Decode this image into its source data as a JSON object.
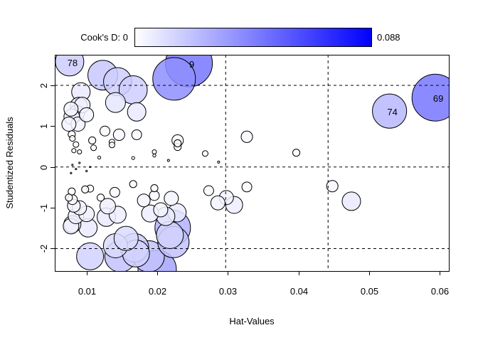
{
  "chart_data": {
    "type": "scatter",
    "subtype": "bubble",
    "xlabel": "Hat-Values",
    "ylabel": "Studentized Residuals",
    "xlim": [
      0.0055,
      0.0613
    ],
    "ylim": [
      -2.55,
      2.75
    ],
    "x_ticks": [
      "0.01",
      "0.02",
      "0.03",
      "0.04",
      "0.05",
      "0.06"
    ],
    "x_tick_values": [
      0.01,
      0.02,
      0.03,
      0.04,
      0.05,
      0.06
    ],
    "y_ticks": [
      "-2",
      "-1",
      "0",
      "1",
      "2"
    ],
    "y_tick_values": [
      -2,
      -1,
      0,
      1,
      2
    ],
    "reference_lines": {
      "vertical": [
        0.0297,
        0.0442
      ],
      "horizontal": [
        -2,
        0,
        2
      ],
      "style": "dashed"
    },
    "color_scale": {
      "label": "Cook's D: 0",
      "min": 0,
      "max": 0.088,
      "max_label": "0.088",
      "low_color": "#ffffff",
      "high_color": "#0000ff"
    },
    "grid": false,
    "points_fields": [
      "hat",
      "rstudent",
      "cooksd",
      "label"
    ],
    "points": [
      [
        0.0076,
        2.58,
        0.0173,
        "78"
      ],
      [
        0.0245,
        2.54,
        0.047,
        "9"
      ],
      [
        0.0594,
        1.7,
        0.047,
        "69"
      ],
      [
        0.0529,
        1.37,
        0.025,
        "74"
      ],
      [
        0.0224,
        2.16,
        0.039,
        ""
      ],
      [
        0.0123,
        2.25,
        0.019,
        ""
      ],
      [
        0.0144,
        2.09,
        0.017,
        ""
      ],
      [
        0.0166,
        1.89,
        0.017,
        ""
      ],
      [
        0.0141,
        1.58,
        0.0085,
        ""
      ],
      [
        0.0171,
        1.35,
        0.0073,
        ""
      ],
      [
        0.0092,
        1.84,
        0.0073,
        ""
      ],
      [
        0.0089,
        1.5,
        0.0062,
        ""
      ],
      [
        0.0086,
        1.32,
        0.0052,
        ""
      ],
      [
        0.0079,
        1.23,
        0.0052,
        ""
      ],
      [
        0.0088,
        1.05,
        0.0043,
        ""
      ],
      [
        0.0075,
        1.05,
        0.0043,
        ""
      ],
      [
        0.0094,
        1.52,
        0.0052,
        ""
      ],
      [
        0.01,
        1.28,
        0.0043,
        ""
      ],
      [
        0.0078,
        1.42,
        0.0043,
        ""
      ],
      [
        0.0146,
        0.79,
        0.0028,
        ""
      ],
      [
        0.0171,
        0.79,
        0.0021,
        ""
      ],
      [
        0.0229,
        0.65,
        0.0028,
        ""
      ],
      [
        0.0327,
        0.74,
        0.0028,
        ""
      ],
      [
        0.0397,
        0.35,
        0.0011,
        ""
      ],
      [
        0.0268,
        0.33,
        0.0007,
        ""
      ],
      [
        0.0229,
        0.49,
        0.0011,
        ""
      ],
      [
        0.0229,
        0.58,
        0.0011,
        ""
      ],
      [
        0.0126,
        0.88,
        0.0021,
        ""
      ],
      [
        0.0079,
        0.8,
        0.0011,
        ""
      ],
      [
        0.008,
        0.7,
        0.0007,
        ""
      ],
      [
        0.0085,
        0.55,
        0.0007,
        ""
      ],
      [
        0.0082,
        0.4,
        0.0004,
        ""
      ],
      [
        0.009,
        0.37,
        0.0004,
        ""
      ],
      [
        0.011,
        0.47,
        0.0007,
        ""
      ],
      [
        0.0108,
        0.65,
        0.0011,
        ""
      ],
      [
        0.0136,
        0.61,
        0.0007,
        ""
      ],
      [
        0.0136,
        0.54,
        0.0007,
        ""
      ],
      [
        0.0118,
        0.23,
        0.0002,
        ""
      ],
      [
        0.0196,
        0.37,
        0.0004,
        ""
      ],
      [
        0.0196,
        0.28,
        0.0002,
        ""
      ],
      [
        0.0216,
        0.16,
        0.0001,
        ""
      ],
      [
        0.0287,
        0.12,
        0.0001,
        ""
      ],
      [
        0.0166,
        0.22,
        0.0002,
        ""
      ],
      [
        0.008,
        0.05,
        5e-05,
        ""
      ],
      [
        0.0085,
        -0.05,
        5e-05,
        ""
      ],
      [
        0.009,
        0.1,
        5e-05,
        ""
      ],
      [
        0.01,
        -0.1,
        5e-05,
        ""
      ],
      [
        0.0078,
        -0.15,
        5e-05,
        ""
      ],
      [
        0.0105,
        0.0,
        3e-05,
        ""
      ],
      [
        0.0448,
        -0.47,
        0.0028,
        ""
      ],
      [
        0.0475,
        -0.84,
        0.0073,
        ""
      ],
      [
        0.0327,
        -0.49,
        0.0021,
        ""
      ],
      [
        0.0273,
        -0.58,
        0.0021,
        ""
      ],
      [
        0.0298,
        -0.75,
        0.0043,
        ""
      ],
      [
        0.0309,
        -0.93,
        0.0062,
        ""
      ],
      [
        0.0286,
        -0.88,
        0.0043,
        ""
      ],
      [
        0.0228,
        -1.12,
        0.0073,
        ""
      ],
      [
        0.022,
        -0.77,
        0.0043,
        ""
      ],
      [
        0.0212,
        -1.21,
        0.0073,
        ""
      ],
      [
        0.0205,
        -1.05,
        0.0043,
        ""
      ],
      [
        0.019,
        -1.14,
        0.0062,
        ""
      ],
      [
        0.0181,
        -0.82,
        0.0035,
        ""
      ],
      [
        0.013,
        -0.96,
        0.0052,
        ""
      ],
      [
        0.0144,
        -1.17,
        0.0062,
        ""
      ],
      [
        0.0128,
        -1.23,
        0.0073,
        ""
      ],
      [
        0.012,
        -0.75,
        0.0011,
        ""
      ],
      [
        0.0102,
        -1.49,
        0.0073,
        ""
      ],
      [
        0.008,
        -1.4,
        0.0062,
        ""
      ],
      [
        0.0078,
        -1.45,
        0.0052,
        ""
      ],
      [
        0.009,
        -1.0,
        0.0043,
        ""
      ],
      [
        0.0082,
        -0.95,
        0.0035,
        ""
      ],
      [
        0.008,
        -0.8,
        0.0021,
        ""
      ],
      [
        0.0079,
        -0.6,
        0.0011,
        ""
      ],
      [
        0.0085,
        -1.2,
        0.0052,
        ""
      ],
      [
        0.01,
        -1.15,
        0.0052,
        ""
      ],
      [
        0.0075,
        -0.75,
        0.0011,
        ""
      ],
      [
        0.014,
        -0.62,
        0.0021,
        ""
      ],
      [
        0.0166,
        -0.42,
        0.0011,
        ""
      ],
      [
        0.0196,
        -0.52,
        0.0011,
        ""
      ],
      [
        0.0196,
        -0.7,
        0.0021,
        ""
      ],
      [
        0.0105,
        -0.53,
        0.0011,
        ""
      ],
      [
        0.0098,
        -0.55,
        0.0011,
        ""
      ],
      [
        0.0105,
        -2.19,
        0.0156,
        ""
      ],
      [
        0.0141,
        -1.93,
        0.0125,
        ""
      ],
      [
        0.0148,
        -2.19,
        0.021,
        ""
      ],
      [
        0.0168,
        -1.98,
        0.0173,
        ""
      ],
      [
        0.0156,
        -1.75,
        0.0125,
        ""
      ],
      [
        0.0188,
        -2.19,
        0.021,
        ""
      ],
      [
        0.02,
        -2.51,
        0.0315,
        ""
      ],
      [
        0.0222,
        -1.49,
        0.027,
        ""
      ],
      [
        0.0223,
        -1.84,
        0.021,
        ""
      ],
      [
        0.0218,
        -1.67,
        0.0156,
        ""
      ],
      [
        0.017,
        -2.12,
        0.0156,
        ""
      ]
    ]
  }
}
